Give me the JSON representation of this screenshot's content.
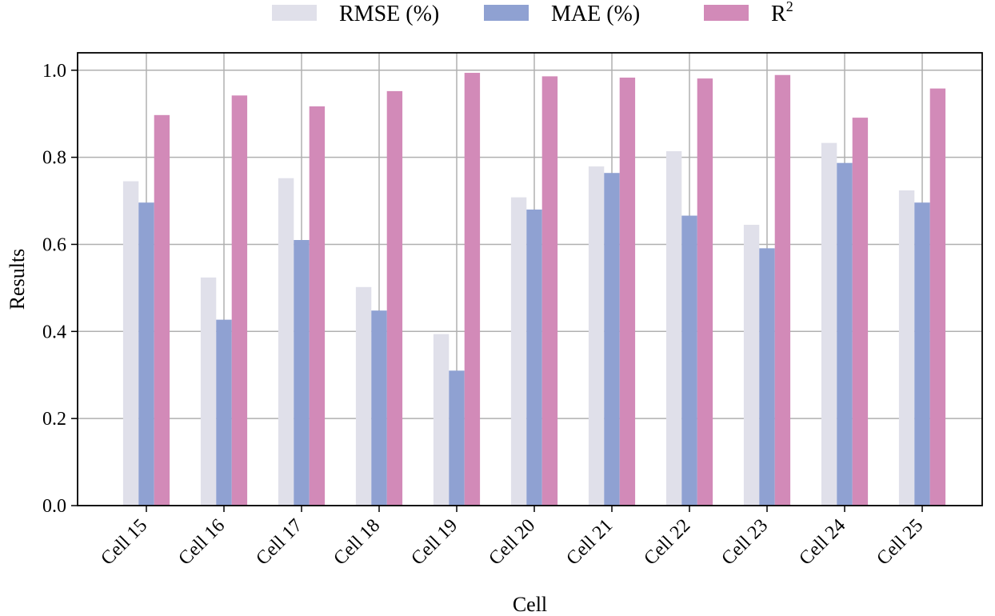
{
  "chart_data": {
    "type": "bar",
    "title": "",
    "xlabel": "Cell",
    "ylabel": "Results",
    "ylim": [
      0,
      1.04
    ],
    "yticks": [
      "0.0",
      "0.2",
      "0.4",
      "0.6",
      "0.8",
      "1.0"
    ],
    "grid": true,
    "legend_position": "top-center",
    "categories": [
      "Cell 15",
      "Cell 16",
      "Cell 17",
      "Cell 18",
      "Cell 19",
      "Cell 20",
      "Cell 21",
      "Cell 22",
      "Cell 23",
      "Cell 24",
      "Cell 25"
    ],
    "series": [
      {
        "name": "RMSE (%)",
        "color": "#e0e0ea",
        "values": [
          0.745,
          0.524,
          0.752,
          0.502,
          0.394,
          0.708,
          0.779,
          0.814,
          0.645,
          0.833,
          0.724
        ]
      },
      {
        "name": "MAE (%)",
        "color": "#8fa1d2",
        "values": [
          0.696,
          0.427,
          0.61,
          0.448,
          0.31,
          0.68,
          0.764,
          0.666,
          0.591,
          0.787,
          0.696
        ]
      },
      {
        "name": "R",
        "name_sup": "2",
        "color": "#d28ab8",
        "values": [
          0.897,
          0.942,
          0.917,
          0.952,
          0.994,
          0.986,
          0.983,
          0.981,
          0.989,
          0.891,
          0.958
        ]
      }
    ]
  }
}
